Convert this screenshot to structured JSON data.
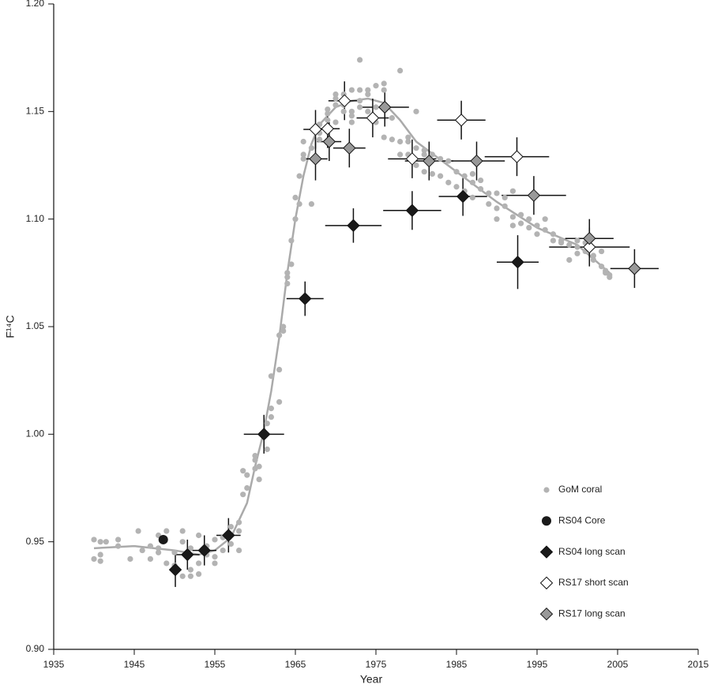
{
  "chart_data": {
    "type": "scatter",
    "x_label": "Year",
    "y_label": "F¹⁴C",
    "xlim": [
      1935,
      2015
    ],
    "xticks": [
      1935,
      1945,
      1955,
      1965,
      1975,
      1985,
      1995,
      2005,
      2015
    ],
    "ylim": [
      0.9,
      1.2
    ],
    "yticks": [
      {
        "value": 0.9,
        "label": "0.90"
      },
      0.95,
      {
        "value": 1.0,
        "label": "1.00"
      },
      1.05,
      {
        "value": 1.1,
        "label": "1.10"
      },
      1.15,
      {
        "value": 1.2,
        "label": "1.20"
      }
    ],
    "grid": false,
    "legend": "lower right",
    "curve": {
      "color": "#aaaaaa",
      "x": [
        1940,
        1945,
        1950,
        1953,
        1955,
        1957,
        1959,
        1960,
        1961,
        1962,
        1963,
        1964,
        1965,
        1966,
        1967,
        1968,
        1970,
        1972,
        1974,
        1976,
        1978,
        1980,
        1985,
        1990,
        1995,
        2000,
        2004
      ],
      "values": [
        0.947,
        0.948,
        0.946,
        0.944,
        0.946,
        0.952,
        0.968,
        0.985,
        1.0,
        1.02,
        1.045,
        1.075,
        1.1,
        1.12,
        1.135,
        1.144,
        1.152,
        1.155,
        1.156,
        1.154,
        1.146,
        1.136,
        1.122,
        1.108,
        1.096,
        1.088,
        1.075
      ]
    },
    "series": [
      {
        "name": "GoM coral",
        "color": "#b3b3b3",
        "marker": "dot",
        "x": [
          1940,
          1940,
          1940.8,
          1940.8,
          1940.8,
          1941.5,
          1943,
          1943,
          1944.5,
          1945.5,
          1946,
          1947,
          1947,
          1948,
          1948,
          1948,
          1949,
          1949,
          1950,
          1950,
          1951,
          1951,
          1951,
          1952,
          1952,
          1952,
          1953,
          1953,
          1953,
          1954,
          1954,
          1955,
          1955,
          1955,
          1956,
          1956,
          1957,
          1957,
          1958,
          1958,
          1958,
          1958.5,
          1958.5,
          1959,
          1959,
          1960,
          1960,
          1960,
          1960.5,
          1960.5,
          1961.5,
          1961.5,
          1962,
          1962,
          1962,
          1963,
          1963,
          1963,
          1963.5,
          1963.5,
          1964,
          1964,
          1964,
          1964.5,
          1964.5,
          1965,
          1965,
          1965.5,
          1965.5,
          1966,
          1966,
          1966,
          1967,
          1967,
          1968,
          1968,
          1968,
          1969,
          1969,
          1969,
          1970,
          1970,
          1970,
          1970,
          1971,
          1971,
          1971,
          1972,
          1972,
          1972,
          1972,
          1973,
          1973,
          1973,
          1973,
          1974,
          1974,
          1974,
          1975,
          1975,
          1975,
          1976,
          1976,
          1976,
          1977,
          1977,
          1978,
          1978,
          1978,
          1979,
          1979,
          1979,
          1980,
          1980,
          1980,
          1981,
          1981,
          1981,
          1982,
          1982,
          1983,
          1983,
          1984,
          1984,
          1985,
          1985,
          1986,
          1986,
          1987,
          1987,
          1987,
          1988,
          1988,
          1989,
          1989,
          1990,
          1990,
          1990,
          1991,
          1991,
          1992,
          1992,
          1992,
          1993,
          1993,
          1994,
          1994,
          1995,
          1995,
          1996,
          1996,
          1997,
          1997,
          1998,
          1998,
          1999,
          1999,
          2000,
          2000,
          2000,
          2001,
          2001,
          2002,
          2002,
          2003,
          2003,
          2003.5,
          2003.5,
          2004,
          2004
        ],
        "values": [
          0.951,
          0.942,
          0.95,
          0.944,
          0.941,
          0.95,
          0.948,
          0.951,
          0.942,
          0.955,
          0.946,
          0.948,
          0.942,
          0.945,
          0.953,
          0.947,
          0.955,
          0.94,
          0.939,
          0.945,
          0.934,
          0.95,
          0.955,
          0.934,
          0.937,
          0.947,
          0.935,
          0.94,
          0.953,
          0.944,
          0.948,
          0.94,
          0.943,
          0.951,
          0.946,
          0.952,
          0.957,
          0.949,
          0.955,
          0.959,
          0.946,
          0.983,
          0.972,
          0.981,
          0.975,
          0.984,
          0.988,
          0.99,
          0.985,
          0.979,
          0.993,
          1.005,
          1.008,
          1.012,
          1.027,
          1.015,
          1.046,
          1.03,
          1.05,
          1.048,
          1.073,
          1.075,
          1.07,
          1.079,
          1.09,
          1.1,
          1.11,
          1.12,
          1.107,
          1.13,
          1.136,
          1.128,
          1.107,
          1.133,
          1.137,
          1.14,
          1.144,
          1.146,
          1.149,
          1.151,
          1.156,
          1.158,
          1.145,
          1.153,
          1.153,
          1.158,
          1.15,
          1.16,
          1.15,
          1.145,
          1.148,
          1.174,
          1.152,
          1.16,
          1.155,
          1.158,
          1.16,
          1.15,
          1.162,
          1.152,
          1.145,
          1.163,
          1.16,
          1.138,
          1.137,
          1.147,
          1.169,
          1.136,
          1.13,
          1.138,
          1.13,
          1.136,
          1.133,
          1.15,
          1.125,
          1.13,
          1.132,
          1.122,
          1.121,
          1.13,
          1.128,
          1.12,
          1.127,
          1.117,
          1.122,
          1.115,
          1.12,
          1.113,
          1.117,
          1.121,
          1.11,
          1.114,
          1.118,
          1.112,
          1.107,
          1.112,
          1.105,
          1.1,
          1.106,
          1.11,
          1.101,
          1.097,
          1.113,
          1.102,
          1.098,
          1.1,
          1.096,
          1.097,
          1.093,
          1.095,
          1.1,
          1.09,
          1.093,
          1.09,
          1.089,
          1.088,
          1.081,
          1.087,
          1.09,
          1.084,
          1.085,
          1.089,
          1.083,
          1.081,
          1.078,
          1.085,
          1.076,
          1.075,
          1.074,
          1.073
        ]
      },
      {
        "name": "RS04 Core",
        "color": "#1a1a1a",
        "marker": "circle",
        "x": [
          1948.6
        ],
        "values": [
          0.951
        ]
      },
      {
        "name": "RS04 long scan",
        "color": "#1a1a1a",
        "marker": "diamond",
        "x": [
          1950.1,
          1951.6,
          1953.7,
          1956.7,
          1961.1,
          1966.2,
          1972.2,
          1979.5,
          1985.8,
          1992.6
        ],
        "values": [
          0.937,
          0.944,
          0.946,
          0.953,
          1.0,
          1.063,
          1.097,
          1.104,
          1.1105,
          1.08
        ],
        "xerr": [
          0.5,
          1.5,
          1.5,
          1.5,
          2.5,
          2.3,
          3.5,
          3.6,
          3,
          2.6
        ],
        "yerr": [
          0.008,
          0.007,
          0.007,
          0.008,
          0.009,
          0.008,
          0.008,
          0.009,
          0.009,
          0.0125
        ]
      },
      {
        "name": "RS17 short scan",
        "color": "#ffffff",
        "marker": "diamond",
        "x": [
          1967.5,
          1969.0,
          1971.1,
          1974.6,
          1979.5,
          1985.6,
          1992.5,
          2001.5
        ],
        "values": [
          1.1417,
          1.142,
          1.155,
          1.147,
          1.128,
          1.146,
          1.129,
          1.087
        ],
        "xerr": [
          1.5,
          1.5,
          2,
          2,
          3,
          3,
          4,
          5
        ],
        "yerr": [
          0.009,
          0.009,
          0.009,
          0.009,
          0.009,
          0.009,
          0.009,
          0.009
        ]
      },
      {
        "name": "RS17 long scan",
        "color": "#999999",
        "marker": "diamond",
        "x": [
          1967.5,
          1969.2,
          1971.7,
          1976.1,
          1981.6,
          1987.5,
          1994.6,
          2001.5,
          2007.1
        ],
        "values": [
          1.128,
          1.136,
          1.133,
          1.152,
          1.127,
          1.127,
          1.111,
          1.091,
          1.077
        ],
        "xerr": [
          1.5,
          1.5,
          2,
          3,
          3,
          3.5,
          4,
          3,
          3
        ],
        "yerr": [
          0.01,
          0.009,
          0.009,
          0.009,
          0.009,
          0.009,
          0.009,
          0.009,
          0.009
        ]
      }
    ]
  }
}
